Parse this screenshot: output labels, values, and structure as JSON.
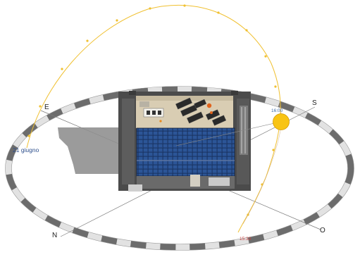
{
  "sun_path": {
    "date_label": "21 giugno",
    "current_time": "16:00",
    "end_time": "15:33"
  },
  "compass": {
    "north": "N",
    "east": "E",
    "south": "S",
    "west": "O"
  },
  "colors": {
    "sun_path_arc": "#f0c030",
    "sun_fill": "#f8c415",
    "sun_stroke": "#d49a00",
    "time_current": "#3a6aa8",
    "time_end": "#c84040",
    "building_facade": "#1e3a6a",
    "ring_light": "#e5e5e5",
    "ring_dark": "#6b6b6b"
  }
}
